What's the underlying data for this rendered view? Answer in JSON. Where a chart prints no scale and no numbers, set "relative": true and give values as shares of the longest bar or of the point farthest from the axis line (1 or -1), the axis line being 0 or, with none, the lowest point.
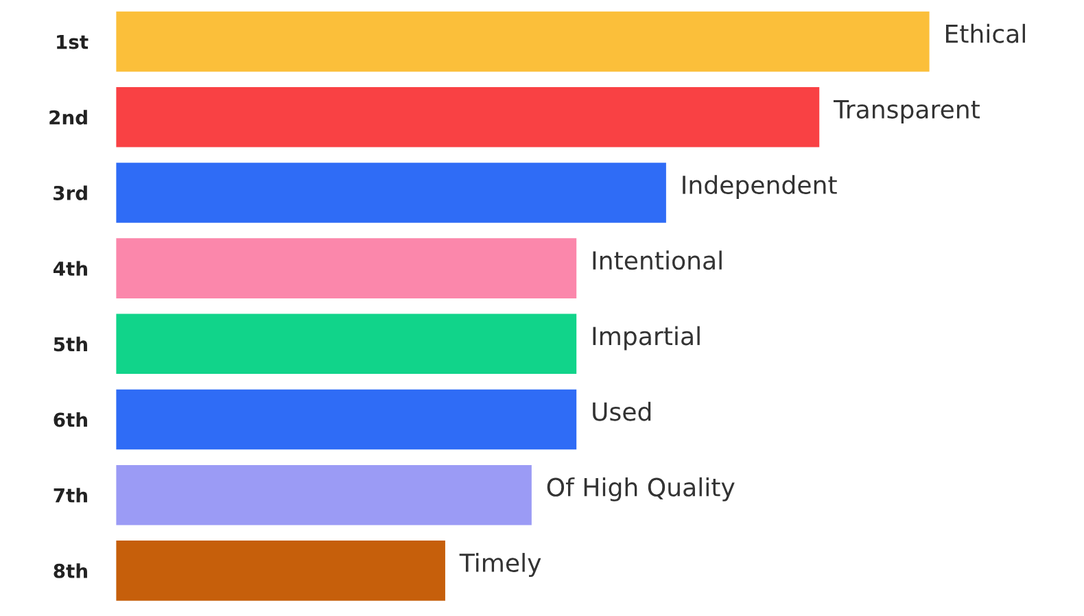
{
  "chart_data": {
    "type": "bar",
    "orientation": "horizontal",
    "relative": true,
    "categories": [
      "1st",
      "2nd",
      "3rd",
      "4th",
      "5th",
      "6th",
      "7th",
      "8th"
    ],
    "values": [
      1,
      0.865,
      0.677,
      0.567,
      0.567,
      0.567,
      0.512,
      0.406
    ],
    "colors": [
      "#fbbf3a",
      "#f94144",
      "#2f6cf6",
      "#fb87ab",
      "#11d48a",
      "#2f6cf6",
      "#9b9bf5",
      "#c65f0b"
    ],
    "annotations": [
      {
        "text": "Ethical",
        "x": 1,
        "y": "1st"
      },
      {
        "text": "Transparent",
        "x": 0.865,
        "y": "2nd"
      },
      {
        "text": "Independent",
        "x": 0.677,
        "y": "3rd"
      },
      {
        "text": "Intentional",
        "x": 0.567,
        "y": "4th"
      },
      {
        "text": "Impartial",
        "x": 0.567,
        "y": "5th"
      },
      {
        "text": "Used",
        "x": 0.567,
        "y": "6th"
      },
      {
        "text": "Of High Quality",
        "x": 0.512,
        "y": "7th"
      },
      {
        "text": "Timely",
        "x": 0.406,
        "y": "8th"
      }
    ],
    "grid": false,
    "legend": false
  }
}
